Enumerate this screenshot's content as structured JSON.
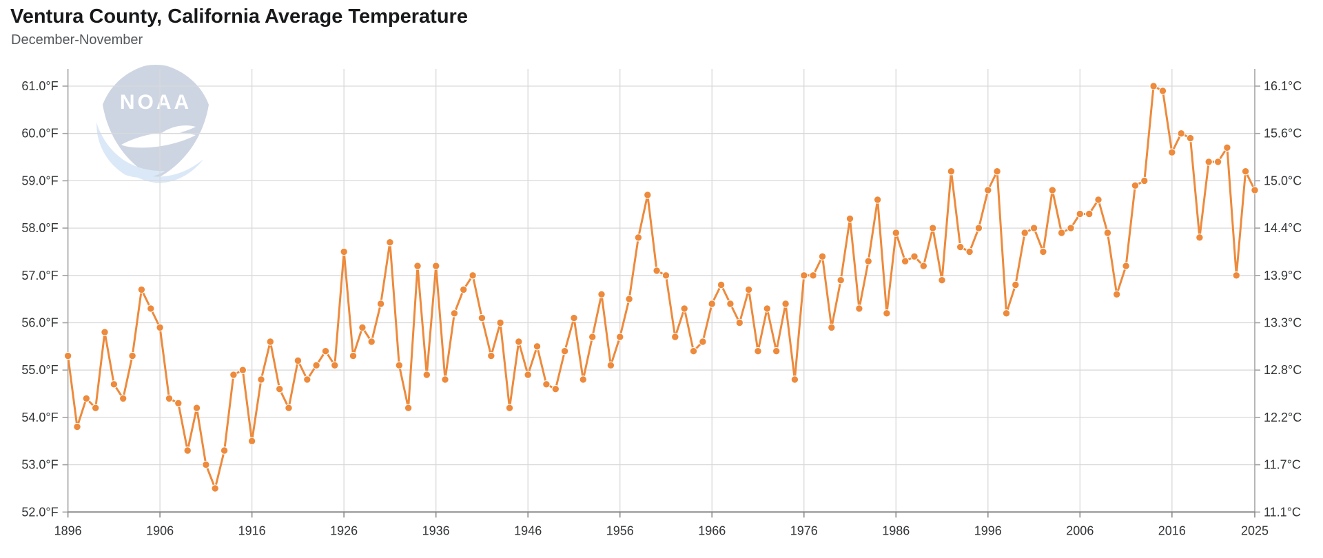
{
  "header": {
    "title": "Ventura County, California Average Temperature",
    "subtitle": "December-November"
  },
  "watermark": {
    "label": "NOAA"
  },
  "chart_data": {
    "type": "line",
    "title": "Ventura County, California Average Temperature",
    "subtitle": "December-November",
    "series_name": "Average Temperature (Dec-Nov annual)",
    "years": [
      1896,
      1897,
      1898,
      1899,
      1900,
      1901,
      1902,
      1903,
      1904,
      1905,
      1906,
      1907,
      1908,
      1909,
      1910,
      1911,
      1912,
      1913,
      1914,
      1915,
      1916,
      1917,
      1918,
      1919,
      1920,
      1921,
      1922,
      1923,
      1924,
      1925,
      1926,
      1927,
      1928,
      1929,
      1930,
      1931,
      1932,
      1933,
      1934,
      1935,
      1936,
      1937,
      1938,
      1939,
      1940,
      1941,
      1942,
      1943,
      1944,
      1945,
      1946,
      1947,
      1948,
      1949,
      1950,
      1951,
      1952,
      1953,
      1954,
      1955,
      1956,
      1957,
      1958,
      1959,
      1960,
      1961,
      1962,
      1963,
      1964,
      1965,
      1966,
      1967,
      1968,
      1969,
      1970,
      1971,
      1972,
      1973,
      1974,
      1975,
      1976,
      1977,
      1978,
      1979,
      1980,
      1981,
      1982,
      1983,
      1984,
      1985,
      1986,
      1987,
      1988,
      1989,
      1990,
      1991,
      1992,
      1993,
      1994,
      1995,
      1996,
      1997,
      1998,
      1999,
      2000,
      2001,
      2002,
      2003,
      2004,
      2005,
      2006,
      2007,
      2008,
      2009,
      2010,
      2011,
      2012,
      2013,
      2014,
      2015,
      2016,
      2017,
      2018,
      2019,
      2020,
      2021,
      2022,
      2023,
      2024,
      2025
    ],
    "values_f": [
      55.3,
      53.8,
      54.4,
      54.2,
      55.8,
      54.7,
      54.4,
      55.3,
      56.7,
      56.3,
      55.9,
      54.4,
      54.3,
      53.3,
      54.2,
      53.0,
      52.5,
      53.3,
      54.9,
      55.0,
      53.5,
      54.8,
      55.6,
      54.6,
      54.2,
      55.2,
      54.8,
      55.1,
      55.4,
      55.1,
      57.5,
      55.3,
      55.9,
      55.6,
      56.4,
      57.7,
      55.1,
      54.2,
      57.2,
      54.9,
      57.2,
      54.8,
      56.2,
      56.7,
      57.0,
      56.1,
      55.3,
      56.0,
      54.2,
      55.6,
      54.9,
      55.5,
      54.7,
      54.6,
      55.4,
      56.1,
      54.8,
      55.7,
      56.6,
      55.1,
      55.7,
      56.5,
      57.8,
      58.7,
      57.1,
      57.0,
      55.7,
      56.3,
      55.4,
      55.6,
      56.4,
      56.8,
      56.4,
      56.0,
      56.7,
      55.4,
      56.3,
      55.4,
      56.4,
      54.8,
      57.0,
      57.0,
      57.4,
      55.9,
      56.9,
      58.2,
      56.3,
      57.3,
      58.6,
      56.2,
      57.9,
      57.3,
      57.4,
      57.2,
      58.0,
      56.9,
      59.2,
      57.6,
      57.5,
      58.0,
      58.8,
      59.2,
      56.2,
      56.8,
      57.9,
      58.0,
      57.5,
      58.8,
      57.9,
      58.0,
      58.3,
      58.3,
      58.6,
      57.9,
      56.6,
      57.2,
      58.9,
      59.0,
      61.0,
      60.9,
      59.6,
      60.0,
      59.9,
      57.8,
      59.4,
      59.4,
      59.7,
      57.0,
      59.2,
      58.8
    ],
    "ylim_f": [
      52.0,
      61.0
    ],
    "yticks": [
      {
        "value": 61,
        "f": "61.0°F",
        "c": "16.1°C"
      },
      {
        "value": 60,
        "f": "60.0°F",
        "c": "15.6°C"
      },
      {
        "value": 59,
        "f": "59.0°F",
        "c": "15.0°C"
      },
      {
        "value": 58,
        "f": "58.0°F",
        "c": "14.4°C"
      },
      {
        "value": 57,
        "f": "57.0°F",
        "c": "13.9°C"
      },
      {
        "value": 56,
        "f": "56.0°F",
        "c": "13.3°C"
      },
      {
        "value": 55,
        "f": "55.0°F",
        "c": "12.8°C"
      },
      {
        "value": 54,
        "f": "54.0°F",
        "c": "12.2°C"
      },
      {
        "value": 53,
        "f": "53.0°F",
        "c": "11.7°C"
      },
      {
        "value": 52,
        "f": "52.0°F",
        "c": "11.1°C"
      }
    ],
    "xticks": [
      {
        "year": 1896,
        "label": "1896"
      },
      {
        "year": 1906,
        "label": "1906"
      },
      {
        "year": 1916,
        "label": "1916"
      },
      {
        "year": 1926,
        "label": "1926"
      },
      {
        "year": 1936,
        "label": "1936"
      },
      {
        "year": 1946,
        "label": "1946"
      },
      {
        "year": 1956,
        "label": "1956"
      },
      {
        "year": 1966,
        "label": "1966"
      },
      {
        "year": 1976,
        "label": "1976"
      },
      {
        "year": 1986,
        "label": "1986"
      },
      {
        "year": 1996,
        "label": "1996"
      },
      {
        "year": 2006,
        "label": "2006"
      },
      {
        "year": 2016,
        "label": "2016"
      },
      {
        "year": 2025,
        "label": "2025"
      }
    ],
    "grid": true,
    "legend_position": "none",
    "colors": {
      "line": "#ED8A3C",
      "marker": "#ED8A3C",
      "marker_border": "#ffffff",
      "gridline": "#d9d9d9",
      "axis": "#a3a3a3",
      "bottom_axis": "#8b8b8b",
      "tick_label": "#323537",
      "logo_dark": "#cdd5e3",
      "logo_light": "#dbe8f7"
    }
  }
}
